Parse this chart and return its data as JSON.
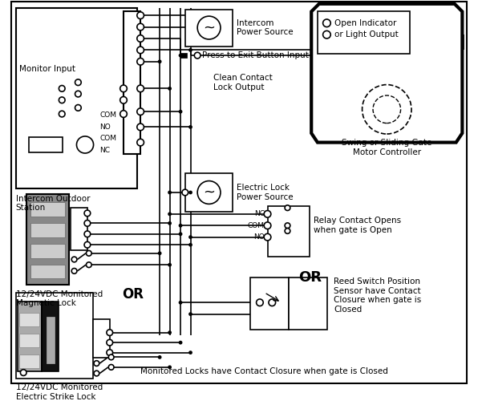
{
  "bg_color": "#ffffff",
  "labels": {
    "monitor_input": "Monitor Input",
    "intercom_station": "Intercom Outdoor\nStation",
    "intercom_ps": "Intercom\nPower Source",
    "press_exit": "Press to Exit Button Input",
    "clean_contact": "Clean Contact\nLock Output",
    "electric_lock_ps": "Electric Lock\nPower Source",
    "mag_lock": "12/24VDC Monitored\nMagnetic Lock",
    "or1": "OR",
    "strike_lock": "12/24VDC Monitored\nElectric Strike Lock",
    "gate_motor": "Swing or Sliding Gate\nMotor Controller",
    "open_indicator": "Open Indicator\nor Light Output",
    "relay_contact": "Relay Contact Opens\nwhen gate is Open",
    "or2": "OR",
    "reed_switch": "Reed Switch Position\nSensor have Contact\nClosure when gate is\nClosed",
    "bottom_note": "Monitored Locks have Contact Closure when gate is Closed"
  }
}
